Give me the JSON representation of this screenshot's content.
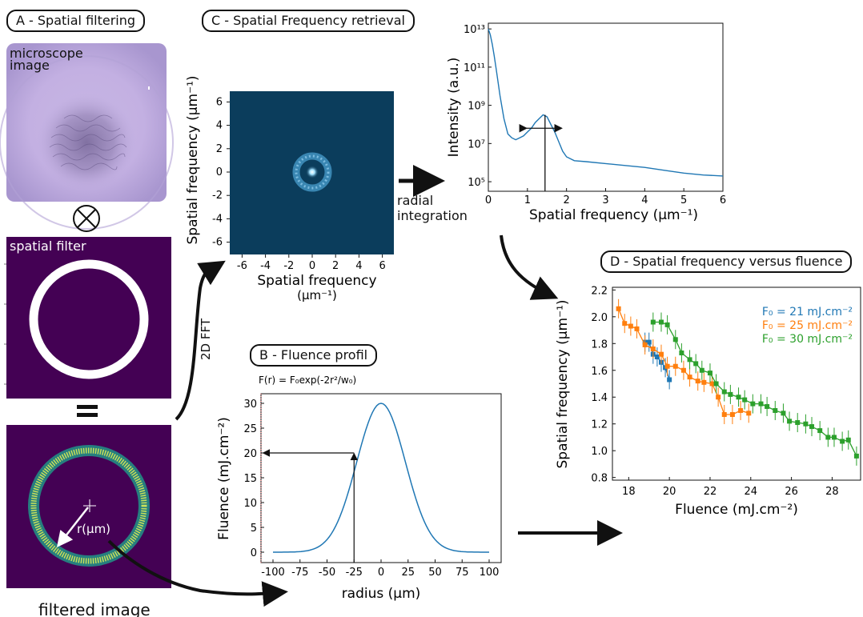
{
  "panels": {
    "a": {
      "title": "A - Spatial filtering",
      "microscope_label": "microscope\nimage",
      "filter_label": "spatial filter",
      "filtered_label": "filtered image",
      "radius_label": "r(µm)"
    },
    "b": {
      "title": "B - Fluence profil",
      "formula": "F(r) = F₀exp(-2r²/w₀)"
    },
    "c": {
      "title": "C - Spatial Frequency retrieval"
    },
    "d": {
      "title": "D - Spatial frequency versus fluence"
    }
  },
  "operations": {
    "convolve_symbol": "⊗",
    "equals_symbol": "=",
    "fft_label": "2D FFT",
    "radial_label": "radial\nintegration"
  },
  "colors": {
    "blue": "#1f77b4",
    "orange": "#ff7f0e",
    "green": "#2ca02c",
    "fft_bg": "#0b3d5c",
    "filter_bg": "#440154",
    "ring": "#c8e05a"
  },
  "fft_axes": {
    "xlabel": "Spatial frequency",
    "xlabel2": "(µm⁻¹)",
    "ylabel": "Spatial frequency  (µm⁻¹)",
    "ticks": [
      "-6",
      "-4",
      "-2",
      "0",
      "2",
      "4",
      "6"
    ]
  },
  "chart_data": [
    {
      "type": "line",
      "xlabel": "Spatial frequency  (µm⁻¹)",
      "ylabel": "Intensity (a.u.)",
      "xlim": [
        0,
        6
      ],
      "ylim_log10": [
        4.5,
        13.3
      ],
      "xticks": [
        "0",
        "1",
        "2",
        "3",
        "4",
        "5",
        "6"
      ],
      "yticks": [
        {
          "exp": 5,
          "text": "10⁵"
        },
        {
          "exp": 7,
          "text": "10⁷"
        },
        {
          "exp": 9,
          "text": "10⁹"
        },
        {
          "exp": 11,
          "text": "10¹¹"
        },
        {
          "exp": 13,
          "text": "10¹³"
        }
      ],
      "log_y": true,
      "series": [
        {
          "x": [
            0,
            0.05,
            0.1,
            0.15,
            0.2,
            0.3,
            0.4,
            0.5,
            0.6,
            0.7,
            0.8,
            0.9,
            1.0,
            1.1,
            1.2,
            1.3,
            1.4,
            1.5,
            1.6,
            1.7,
            1.8,
            1.9,
            2.0,
            2.2,
            2.5,
            3.0,
            3.5,
            4.0,
            4.5,
            5.0,
            5.5,
            6.0
          ],
          "log10y": [
            13.0,
            12.7,
            12.2,
            11.6,
            10.9,
            9.5,
            8.3,
            7.5,
            7.3,
            7.2,
            7.3,
            7.4,
            7.6,
            7.8,
            8.1,
            8.3,
            8.5,
            8.4,
            8.0,
            7.6,
            7.1,
            6.6,
            6.3,
            6.1,
            6.05,
            5.95,
            5.85,
            5.75,
            5.6,
            5.45,
            5.35,
            5.3
          ]
        }
      ],
      "annotation": {
        "peak_x": 1.45,
        "fwhm": [
          0.95,
          1.85
        ]
      }
    },
    {
      "type": "line",
      "xlabel": "radius (µm)",
      "ylabel": "Fluence (mJ.cm⁻²)",
      "xlim": [
        -100,
        100
      ],
      "ylim": [
        0,
        30
      ],
      "xticks": [
        "-100",
        "-75",
        "-50",
        "-25",
        "0",
        "25",
        "50",
        "75",
        "100"
      ],
      "yticks": [
        "0",
        "5",
        "10",
        "15",
        "20",
        "25",
        "30"
      ],
      "series": [
        {
          "name": "",
          "function": "gaussian",
          "peak": 30,
          "w0": 45
        }
      ],
      "annotation": {
        "x": -25,
        "y": 20
      }
    },
    {
      "type": "scatter",
      "xlabel": "Fluence (mJ.cm⁻²)",
      "ylabel": "Spatial frequency  (µm⁻¹)",
      "xlim": [
        17.2,
        29.4
      ],
      "ylim": [
        0.78,
        2.22
      ],
      "xticks": [
        "18",
        "20",
        "22",
        "24",
        "26",
        "28"
      ],
      "yticks": [
        "0.8",
        "1.0",
        "1.2",
        "1.4",
        "1.6",
        "1.8",
        "2.0",
        "2.2"
      ],
      "legend": [
        "F₀ = 21 mJ.cm⁻²",
        "F₀ = 25 mJ.cm⁻²",
        "F₀ = 30 mJ.cm⁻²"
      ],
      "legend_position": "top-right",
      "series": [
        {
          "color": "blue",
          "x": [
            18.8,
            19.0,
            19.2,
            19.4,
            19.6,
            19.8,
            20.0
          ],
          "y": [
            1.81,
            1.81,
            1.72,
            1.7,
            1.66,
            1.62,
            1.53
          ]
        },
        {
          "color": "orange",
          "x": [
            17.5,
            17.8,
            18.1,
            18.4,
            18.8,
            19.2,
            19.6,
            19.9,
            20.3,
            20.7,
            21.0,
            21.4,
            21.7,
            22.1,
            22.4,
            22.7,
            23.1,
            23.5,
            23.9
          ],
          "y": [
            2.06,
            1.95,
            1.93,
            1.91,
            1.79,
            1.76,
            1.72,
            1.63,
            1.63,
            1.6,
            1.55,
            1.52,
            1.51,
            1.5,
            1.4,
            1.27,
            1.27,
            1.3,
            1.28
          ]
        },
        {
          "color": "green",
          "x": [
            19.2,
            19.6,
            19.9,
            20.3,
            20.6,
            21.0,
            21.3,
            21.6,
            22.0,
            22.3,
            22.7,
            23.0,
            23.4,
            23.7,
            24.1,
            24.5,
            24.8,
            25.2,
            25.6,
            25.9,
            26.3,
            26.7,
            27.0,
            27.4,
            27.8,
            28.1,
            28.5,
            28.8,
            29.2
          ],
          "y": [
            1.96,
            1.96,
            1.94,
            1.83,
            1.73,
            1.68,
            1.65,
            1.6,
            1.58,
            1.5,
            1.44,
            1.42,
            1.4,
            1.38,
            1.35,
            1.35,
            1.33,
            1.3,
            1.28,
            1.22,
            1.21,
            1.2,
            1.18,
            1.15,
            1.1,
            1.1,
            1.07,
            1.08,
            0.96
          ]
        }
      ]
    }
  ]
}
